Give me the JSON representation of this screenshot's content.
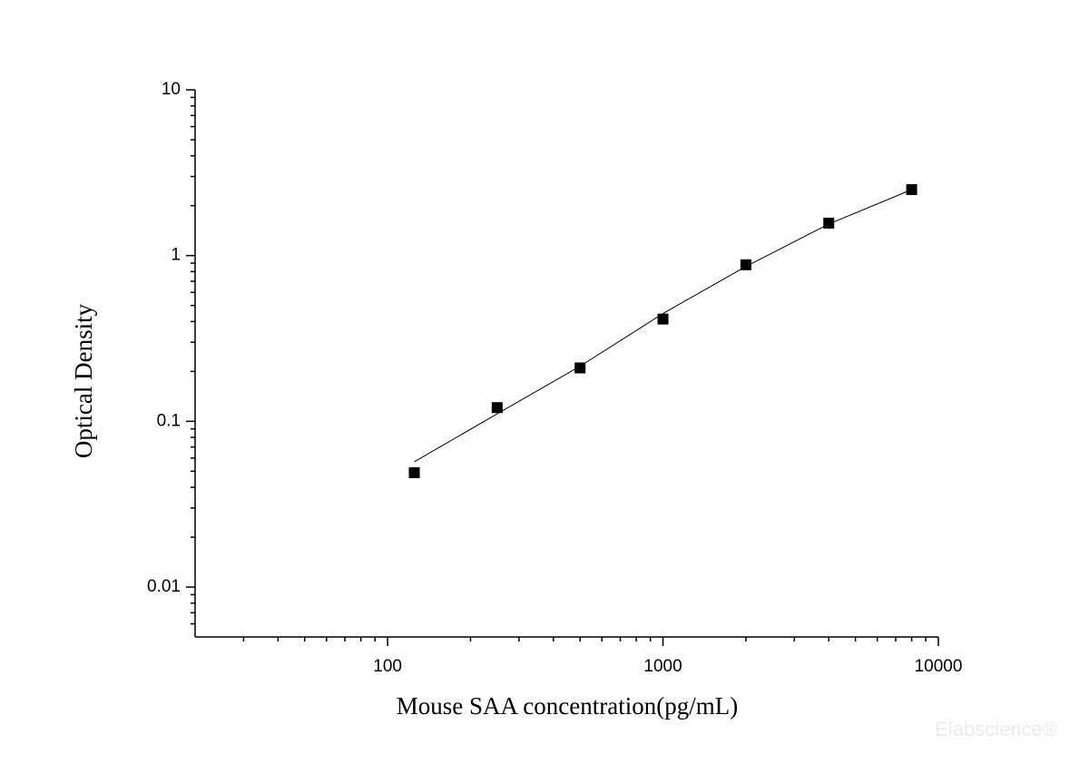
{
  "chart_data": {
    "type": "scatter",
    "x_label": "Mouse SAA concentration(pg/mL)",
    "y_label": "Optical Density",
    "watermark": "Elabscience®",
    "log_x": true,
    "log_y": true,
    "xlim": [
      20,
      10000
    ],
    "ylim": [
      0.005,
      10
    ],
    "xticks": [
      100,
      1000,
      10000
    ],
    "yticks": [
      0.01,
      0.1,
      1,
      10
    ],
    "xminorticks": [
      30,
      40,
      50,
      60,
      70,
      80,
      90,
      200,
      300,
      400,
      500,
      600,
      700,
      800,
      900,
      2000,
      3000,
      4000,
      5000,
      6000,
      7000,
      8000,
      9000
    ],
    "yminorticks": [
      0.006,
      0.007,
      0.008,
      0.009,
      0.02,
      0.03,
      0.04,
      0.05,
      0.06,
      0.07,
      0.08,
      0.09,
      0.2,
      0.3,
      0.4,
      0.5,
      0.6,
      0.7,
      0.8,
      0.9,
      2,
      3,
      4,
      5,
      6,
      7,
      8,
      9
    ],
    "color": "#000000",
    "x": [
      125,
      250,
      500,
      1000,
      2000,
      4000,
      8000
    ],
    "values": [
      0.049,
      0.121,
      0.21,
      0.414,
      0.88,
      1.57,
      2.5
    ],
    "fit": {
      "x": [
        125,
        250,
        500,
        1000,
        2000,
        4000,
        8000
      ],
      "values": [
        0.057,
        0.111,
        0.215,
        0.447,
        0.86,
        1.55,
        2.5
      ]
    }
  }
}
